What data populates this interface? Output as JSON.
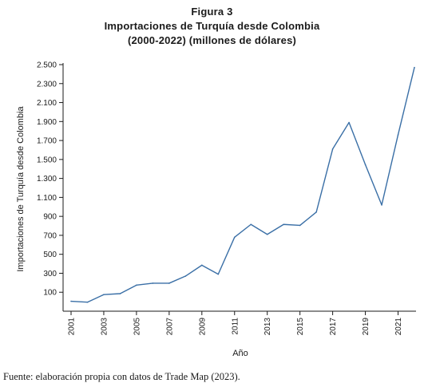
{
  "figure": {
    "label": "Figura 3",
    "title_line1": "Importaciones de Turquía desde Colombia",
    "title_line2": "(2000-2022) (millones de dólares)",
    "source": "Fuente: elaboración propia con datos de Trade Map (2023)."
  },
  "chart_data": {
    "type": "line",
    "title": "Importaciones de Turquía desde Colombia (2000-2022) (millones de dólares)",
    "xlabel": "Año",
    "ylabel": "Importaciones de Turquía desde Colombia",
    "x": [
      2001,
      2002,
      2003,
      2004,
      2005,
      2006,
      2007,
      2008,
      2009,
      2010,
      2011,
      2012,
      2013,
      2014,
      2015,
      2016,
      2017,
      2018,
      2019,
      2020,
      2021,
      2022
    ],
    "series": [
      {
        "name": "",
        "values": [
          5,
          -5,
          75,
          85,
          175,
          195,
          195,
          270,
          385,
          290,
          680,
          815,
          710,
          815,
          805,
          945,
          1610,
          1890,
          1445,
          1020,
          1760,
          2470
        ]
      }
    ],
    "ylim": [
      -100,
      2500
    ],
    "yticks": [
      100,
      300,
      500,
      700,
      900,
      1100,
      1300,
      1500,
      1700,
      1900,
      2100,
      2300,
      2500
    ],
    "ytick_labels": [
      "100",
      "300",
      "500",
      "700",
      "900",
      "1.100",
      "1.300",
      "1.500",
      "1.700",
      "1.900",
      "2.100",
      "2.300",
      "2.500"
    ],
    "xticks": [
      2001,
      2003,
      2005,
      2007,
      2009,
      2011,
      2013,
      2015,
      2017,
      2019,
      2021
    ],
    "grid": false,
    "line_color": "#3a6fa6",
    "axis_color": "#1a1a1a"
  }
}
